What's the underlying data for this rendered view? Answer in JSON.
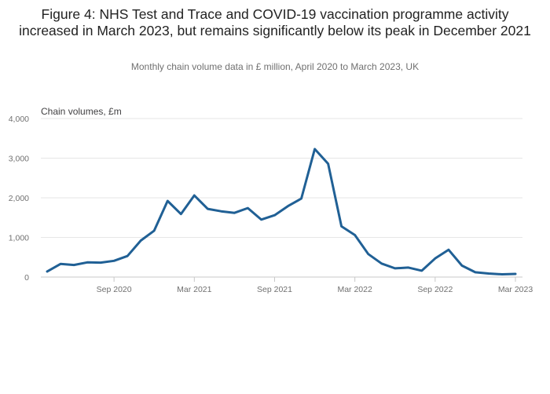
{
  "title": "Figure 4: NHS Test and Trace and COVID-19 vaccination programme activity increased in March 2023, but remains significantly below its peak in December 2021",
  "subtitle": "Monthly chain volume data in £ million, April 2020 to March 2023, UK",
  "chart_data": {
    "type": "line",
    "title": "Figure 4: NHS Test and Trace and COVID-19 vaccination programme activity increased in March 2023, but remains significantly below its peak in December 2021",
    "subtitle": "Monthly chain volume data in £ million, April 2020 to March 2023, UK",
    "ylabel": "Chain volumes, £m",
    "xlabel": "",
    "ylim": [
      0,
      4000
    ],
    "yticks": [
      0,
      1000,
      2000,
      3000,
      4000
    ],
    "ytick_labels": [
      "0",
      "1,000",
      "2,000",
      "3,000",
      "4,000"
    ],
    "xticks": [
      {
        "index": 5,
        "label": "Sep 2020"
      },
      {
        "index": 11,
        "label": "Mar 2021"
      },
      {
        "index": 17,
        "label": "Sep 2021"
      },
      {
        "index": 23,
        "label": "Mar 2022"
      },
      {
        "index": 29,
        "label": "Sep 2022"
      },
      {
        "index": 35,
        "label": "Mar 2023"
      }
    ],
    "grid": true,
    "color": "#206095",
    "series": [
      {
        "name": "Chain volumes, £m",
        "x": [
          "Apr 2020",
          "May 2020",
          "Jun 2020",
          "Jul 2020",
          "Aug 2020",
          "Sep 2020",
          "Oct 2020",
          "Nov 2020",
          "Dec 2020",
          "Jan 2021",
          "Feb 2021",
          "Mar 2021",
          "Apr 2021",
          "May 2021",
          "Jun 2021",
          "Jul 2021",
          "Aug 2021",
          "Sep 2021",
          "Oct 2021",
          "Nov 2021",
          "Dec 2021",
          "Jan 2022",
          "Feb 2022",
          "Mar 2022",
          "Apr 2022",
          "May 2022",
          "Jun 2022",
          "Jul 2022",
          "Aug 2022",
          "Sep 2022",
          "Oct 2022",
          "Nov 2022",
          "Dec 2022",
          "Jan 2023",
          "Feb 2023",
          "Mar 2023"
        ],
        "values": [
          140,
          330,
          305,
          370,
          365,
          410,
          530,
          920,
          1170,
          1920,
          1590,
          2060,
          1720,
          1660,
          1620,
          1740,
          1450,
          1560,
          1790,
          1980,
          3230,
          2860,
          1280,
          1060,
          580,
          340,
          220,
          240,
          160,
          470,
          690,
          290,
          120,
          90,
          70,
          80
        ]
      }
    ]
  }
}
